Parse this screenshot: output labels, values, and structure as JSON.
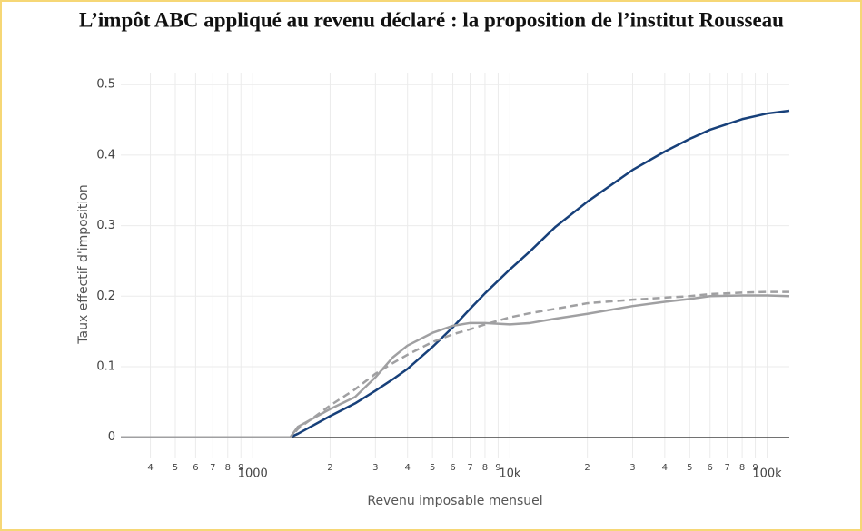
{
  "chart_data": {
    "type": "line",
    "title": "L’impôt ABC appliqué au revenu déclaré : la proposition de l’institut Rousseau",
    "x_label": "Revenu imposable mensuel",
    "y_label": "Taux effectif d'imposition",
    "x": [
      307,
      1000,
      1400,
      1500,
      2000,
      2500,
      3000,
      3500,
      4000,
      5000,
      6000,
      7000,
      8000,
      10000,
      12000,
      15000,
      20000,
      30000,
      40000,
      50000,
      60000,
      80000,
      100000,
      122000
    ],
    "series": [
      {
        "color": "#17407a",
        "line_style": "solid",
        "values": [
          0,
          0,
          0,
          0.005,
          0.03,
          0.048,
          0.066,
          0.082,
          0.097,
          0.128,
          0.156,
          0.182,
          0.204,
          0.238,
          0.264,
          0.298,
          0.334,
          0.379,
          0.405,
          0.423,
          0.436,
          0.451,
          0.459,
          0.463
        ]
      },
      {
        "color": "#a0a0a2",
        "line_style": "solid",
        "values": [
          0,
          0,
          0,
          0.015,
          0.04,
          0.057,
          0.085,
          0.113,
          0.13,
          0.148,
          0.158,
          0.162,
          0.162,
          0.16,
          0.162,
          0.168,
          0.175,
          0.186,
          0.192,
          0.196,
          0.2,
          0.201,
          0.201,
          0.2
        ]
      },
      {
        "color": "#a0a0a2",
        "line_style": "dashed",
        "values": [
          0,
          0,
          0,
          0.012,
          0.045,
          0.068,
          0.09,
          0.105,
          0.117,
          0.135,
          0.146,
          0.153,
          0.16,
          0.17,
          0.176,
          0.182,
          0.19,
          0.195,
          0.198,
          0.2,
          0.203,
          0.205,
          0.206,
          0.206
        ]
      }
    ],
    "xscale": "log",
    "xlim": [
      307,
      122000
    ],
    "xticks": [
      {
        "value": 400,
        "label": "4"
      },
      {
        "value": 500,
        "label": "5"
      },
      {
        "value": 600,
        "label": "6"
      },
      {
        "value": 700,
        "label": "7"
      },
      {
        "value": 800,
        "label": "8"
      },
      {
        "value": 900,
        "label": "9"
      },
      1000,
      {
        "value": 2000,
        "label": "2"
      },
      {
        "value": 3000,
        "label": "3"
      },
      {
        "value": 4000,
        "label": "4"
      },
      {
        "value": 5000,
        "label": "5"
      },
      {
        "value": 6000,
        "label": "6"
      },
      {
        "value": 7000,
        "label": "7"
      },
      {
        "value": 8000,
        "label": "8"
      },
      {
        "value": 9000,
        "label": "9"
      },
      {
        "value": 10000,
        "label": "10k"
      },
      {
        "value": 20000,
        "label": "2"
      },
      {
        "value": 30000,
        "label": "3"
      },
      {
        "value": 40000,
        "label": "4"
      },
      {
        "value": 50000,
        "label": "5"
      },
      {
        "value": 60000,
        "label": "6"
      },
      {
        "value": 70000,
        "label": "7"
      },
      {
        "value": 80000,
        "label": "8"
      },
      {
        "value": 90000,
        "label": "9"
      },
      {
        "value": 100000,
        "label": "100k"
      }
    ],
    "ylim": [
      -0.03,
      0.517
    ],
    "yticks": [
      0,
      0.1,
      0.2,
      0.3,
      0.4,
      0.5
    ],
    "grid": true,
    "zeroline": true
  }
}
